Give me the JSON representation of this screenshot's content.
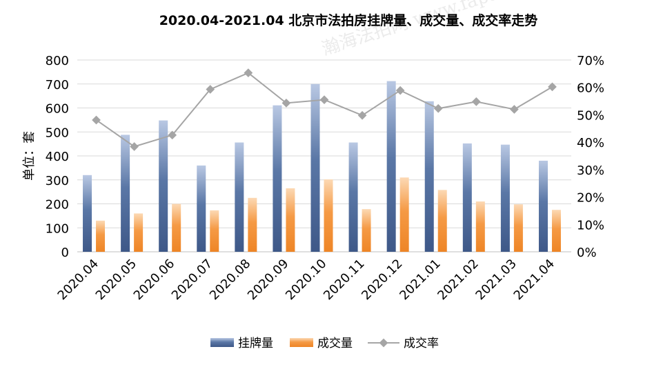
{
  "chart_data": {
    "type": "bar",
    "title": "2020.04-2021.04 北京市法拍房挂牌量、成交量、成交率走势",
    "ylabel": "单位：套",
    "categories": [
      "2020.04",
      "2020.05",
      "2020.06",
      "2020.07",
      "2020.08",
      "2020.09",
      "2020.10",
      "2020.11",
      "2020.12",
      "2021.01",
      "2021.02",
      "2021.03",
      "2021.04"
    ],
    "ylim": [
      0,
      800
    ],
    "y_ticks": [
      0,
      100,
      200,
      300,
      400,
      500,
      600,
      700,
      800
    ],
    "y2lim": [
      0,
      70
    ],
    "y2_ticks": [
      "0%",
      "10%",
      "20%",
      "30%",
      "40%",
      "50%",
      "60%",
      "70%"
    ],
    "grid": true,
    "legend_position": "bottom",
    "series": [
      {
        "name": "挂牌量",
        "type": "bar",
        "axis": "left",
        "color": "#4a6795",
        "values": [
          320,
          488,
          548,
          360,
          456,
          611,
          700,
          456,
          712,
          628,
          452,
          447,
          380
        ]
      },
      {
        "name": "成交量",
        "type": "bar",
        "axis": "left",
        "color": "#f28e2c",
        "values": [
          130,
          160,
          200,
          173,
          225,
          265,
          302,
          178,
          310,
          258,
          210,
          198,
          175
        ]
      },
      {
        "name": "成交率",
        "type": "line",
        "axis": "right",
        "unit": "%",
        "color": "#a5a5a5",
        "values": [
          48.1,
          38.4,
          42.6,
          59.3,
          65.3,
          54.3,
          55.5,
          49.8,
          58.9,
          52.3,
          54.8,
          52.0,
          60.2
        ]
      }
    ]
  },
  "watermark": "瀚海法拍网 www.fapai.cn"
}
